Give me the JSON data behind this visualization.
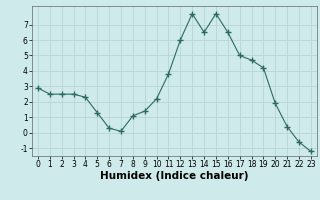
{
  "x": [
    0,
    1,
    2,
    3,
    4,
    5,
    6,
    7,
    8,
    9,
    10,
    11,
    12,
    13,
    14,
    15,
    16,
    17,
    18,
    19,
    20,
    21,
    22,
    23
  ],
  "y": [
    2.9,
    2.5,
    2.5,
    2.5,
    2.3,
    1.3,
    0.3,
    0.1,
    1.1,
    1.4,
    2.2,
    3.8,
    6.0,
    7.7,
    6.5,
    7.7,
    6.5,
    5.0,
    4.7,
    4.2,
    1.9,
    0.4,
    -0.6,
    -1.2
  ],
  "line_color": "#2d6b5e",
  "marker": "+",
  "marker_size": 4,
  "bg_color": "#ceeaea",
  "grid_color": "#b8d4d4",
  "xlabel": "Humidex (Indice chaleur)",
  "xlim": [
    -0.5,
    23.5
  ],
  "ylim": [
    -1.5,
    8.2
  ],
  "yticks": [
    -1,
    0,
    1,
    2,
    3,
    4,
    5,
    6,
    7
  ],
  "xticks": [
    0,
    1,
    2,
    3,
    4,
    5,
    6,
    7,
    8,
    9,
    10,
    11,
    12,
    13,
    14,
    15,
    16,
    17,
    18,
    19,
    20,
    21,
    22,
    23
  ],
  "tick_label_fontsize": 5.5,
  "xlabel_fontsize": 7.5
}
